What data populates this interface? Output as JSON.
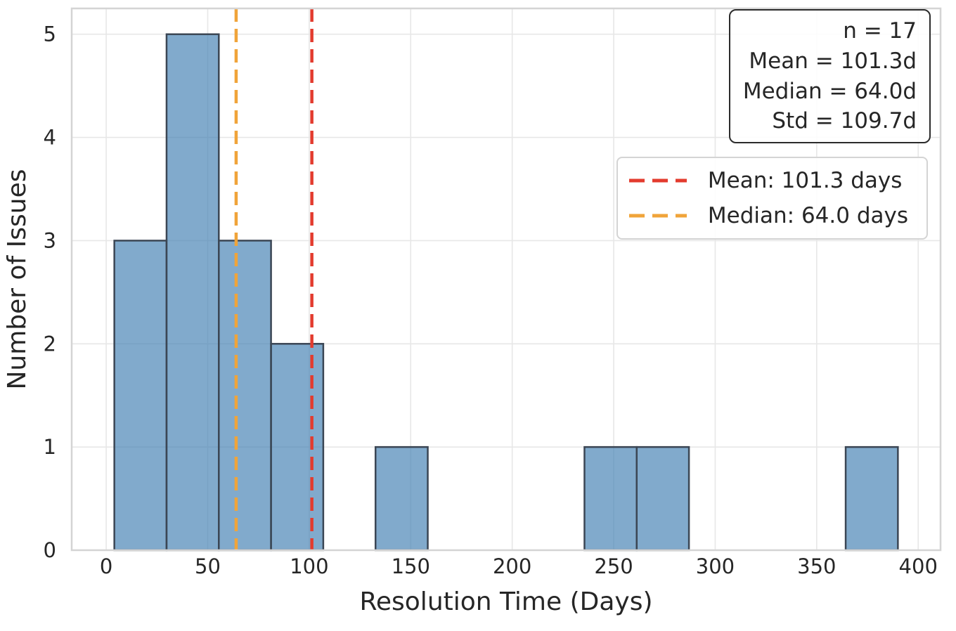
{
  "chart_data": {
    "type": "histogram",
    "title": "",
    "xlabel": "Resolution Time (Days)",
    "ylabel": "Number of Issues",
    "bin_edges": [
      4.0,
      29.73,
      55.47,
      81.2,
      106.93,
      132.67,
      158.4,
      184.13,
      209.87,
      235.6,
      261.33,
      287.07,
      312.8,
      338.53,
      364.27,
      390.0
    ],
    "counts": [
      3,
      5,
      3,
      2,
      0,
      1,
      0,
      0,
      0,
      1,
      1,
      0,
      0,
      0,
      1
    ],
    "x_ticks": [
      0,
      50,
      100,
      150,
      200,
      250,
      300,
      350,
      400
    ],
    "y_ticks": [
      0,
      1,
      2,
      3,
      4,
      5
    ],
    "xlim": [
      -17,
      411
    ],
    "ylim": [
      0,
      5.25
    ],
    "grid": true,
    "n": 17,
    "mean_days": 101.3,
    "median_days": 64.0,
    "std_days": 109.7,
    "stats_box": {
      "lines": [
        "n = 17",
        "Mean = 101.3d",
        "Median = 64.0d",
        "Std = 109.7d"
      ]
    },
    "legend": {
      "position": "upper right",
      "entries": [
        {
          "label": "Mean: 101.3 days",
          "color": "#e33b2e",
          "style": "dashed",
          "value": 101.3
        },
        {
          "label": "Median: 64.0 days",
          "color": "#f0a43a",
          "style": "dashed",
          "value": 64.0
        }
      ]
    },
    "colors": {
      "bar_fill": "#4682b4",
      "bar_fill_opacity": 0.68,
      "bar_edge": "#3b4654",
      "mean_line": "#e33b2e",
      "median_line": "#f0a43a",
      "grid": "#e7e7e7",
      "spine": "#d4d4d4",
      "text": "#262626"
    }
  }
}
